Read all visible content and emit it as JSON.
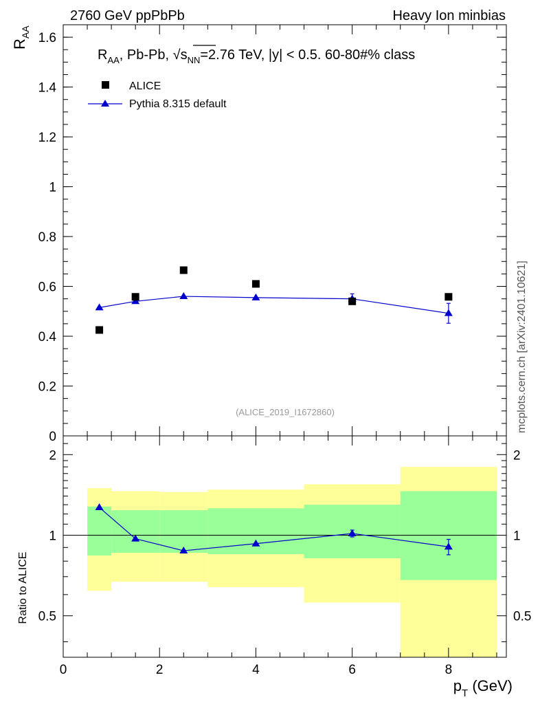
{
  "header": {
    "left": "2760 GeV ppPbPb",
    "right": "Heavy Ion minbias"
  },
  "side_label": "mcplots.cern.ch [arXiv:2401.10621]",
  "watermark": "(ALICE_2019_I1672860)",
  "colors": {
    "data": "#000000",
    "mc": "#0000cc",
    "band_inner": "#99ff99",
    "band_outer": "#ffff99"
  },
  "chart_data": [
    {
      "type": "scatter",
      "panel": "main",
      "title_parts": {
        "r": "R",
        "r_sub": "AA",
        "mid": ", Pb-Pb, ",
        "s": "s",
        "s_sub": "NN",
        "rest": "=2.76 TeV, |y| < 0.5. 60-80#% class"
      },
      "ylabel": "R",
      "ylabel_sub": "AA",
      "ylim": [
        0,
        1.65
      ],
      "xlim": [
        0,
        9.2
      ],
      "ytick_labels": [
        "0",
        "0.2",
        "0.4",
        "0.6",
        "0.8",
        "1",
        "1.2",
        "1.4",
        "1.6"
      ],
      "legend": [
        {
          "name": "ALICE",
          "marker": "square"
        },
        {
          "name": "Pythia 8.315 default",
          "marker": "triangle"
        }
      ],
      "series": [
        {
          "name": "ALICE",
          "x": [
            0.75,
            1.5,
            2.5,
            4.0,
            6.0,
            8.0
          ],
          "y": [
            0.425,
            0.558,
            0.665,
            0.61,
            0.54,
            0.558
          ]
        },
        {
          "name": "Pythia 8.315 default",
          "x": [
            0.75,
            1.5,
            2.5,
            4.0,
            6.0,
            8.0
          ],
          "y": [
            0.515,
            0.54,
            0.56,
            0.555,
            0.55,
            0.492
          ],
          "yerr": [
            0.0,
            0.0,
            0.0,
            0.0,
            0.02,
            0.04
          ]
        }
      ]
    },
    {
      "type": "scatter",
      "panel": "ratio",
      "ylabel": "Ratio to ALICE",
      "ylim": [
        0.35,
        2.35
      ],
      "xlim": [
        0,
        9.2
      ],
      "xlabel": "p",
      "xlabel_sub": "T",
      "xlabel_rest": " (GeV)",
      "xtick_labels": [
        "0",
        "2",
        "4",
        "6",
        "8"
      ],
      "ytick_labels": [
        "0.5",
        "1",
        "2"
      ],
      "bands": [
        {
          "x0": 0.5,
          "x1": 1.0,
          "outer": [
            0.62,
            1.5
          ],
          "inner": [
            0.84,
            1.28
          ]
        },
        {
          "x0": 1.0,
          "x1": 2.0,
          "outer": [
            0.67,
            1.46
          ],
          "inner": [
            0.86,
            1.24
          ]
        },
        {
          "x0": 2.0,
          "x1": 3.0,
          "outer": [
            0.67,
            1.45
          ],
          "inner": [
            0.86,
            1.24
          ]
        },
        {
          "x0": 3.0,
          "x1": 5.0,
          "outer": [
            0.64,
            1.48
          ],
          "inner": [
            0.85,
            1.26
          ]
        },
        {
          "x0": 5.0,
          "x1": 7.0,
          "outer": [
            0.56,
            1.55
          ],
          "inner": [
            0.82,
            1.3
          ]
        },
        {
          "x0": 7.0,
          "x1": 9.0,
          "outer": [
            0.35,
            1.8
          ],
          "inner": [
            0.68,
            1.46
          ]
        }
      ],
      "series": [
        {
          "name": "Pythia 8.315 default",
          "x": [
            0.75,
            1.5,
            2.5,
            4.0,
            6.0,
            8.0
          ],
          "y": [
            1.27,
            0.97,
            0.875,
            0.93,
            1.015,
            0.905
          ],
          "yerr": [
            0.0,
            0.0,
            0.0,
            0.0,
            0.03,
            0.06
          ]
        }
      ]
    }
  ]
}
